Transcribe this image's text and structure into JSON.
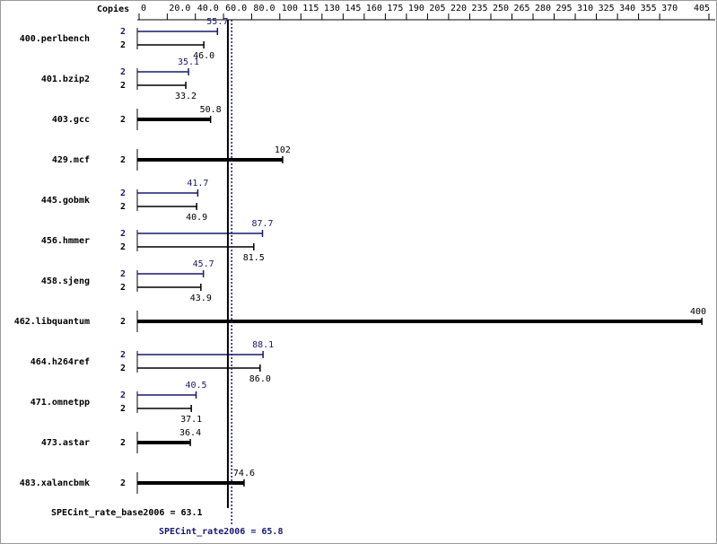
{
  "chart_data": {
    "type": "bar",
    "orientation": "horizontal",
    "copies_label": "Copies",
    "categories": [
      "400.perlbench",
      "401.bzip2",
      "403.gcc",
      "429.mcf",
      "445.gobmk",
      "456.hmmer",
      "458.sjeng",
      "462.libquantum",
      "464.h264ref",
      "471.omnetpp",
      "473.astar",
      "483.xalancbmk"
    ],
    "series": [
      {
        "color": "#000000",
        "values": [
          46.0,
          33.2,
          50.8,
          102,
          40.9,
          81.5,
          43.9,
          400,
          86.0,
          37.1,
          36.4,
          74.6
        ],
        "value_labels": [
          "46.0",
          "33.2",
          "50.8",
          "102",
          "40.9",
          "81.5",
          "43.9",
          "400",
          "86.0",
          "37.1",
          "36.4",
          "74.6"
        ],
        "copies": [
          2,
          2,
          2,
          2,
          2,
          2,
          2,
          2,
          2,
          2,
          2,
          2
        ]
      },
      {
        "color": "#191970",
        "values": [
          55.7,
          35.1,
          null,
          null,
          41.7,
          87.7,
          45.7,
          null,
          88.1,
          40.5,
          null,
          null
        ],
        "copies": [
          2,
          2,
          null,
          null,
          2,
          2,
          2,
          null,
          2,
          2,
          null,
          null
        ]
      }
    ],
    "reference_lines": [
      {
        "label": "SPECint_rate_base2006 = 63.1",
        "value": 63.1,
        "color": "#000000"
      },
      {
        "label": "SPECint_rate2006 = 65.8",
        "value": 65.8,
        "color": "#191970"
      }
    ],
    "xlim": [
      0,
      405
    ],
    "xticks": [
      0,
      {
        "value": 20,
        "label": "20.0"
      },
      {
        "value": 40,
        "label": "40.0"
      },
      {
        "value": 60,
        "label": "60.0"
      },
      {
        "value": 80,
        "label": "80.0"
      },
      100,
      115,
      130,
      145,
      160,
      175,
      190,
      205,
      220,
      235,
      250,
      265,
      280,
      295,
      310,
      325,
      340,
      355,
      370,
      405
    ]
  }
}
